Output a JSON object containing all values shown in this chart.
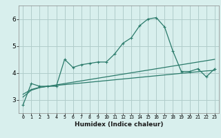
{
  "xlabel": "Humidex (Indice chaleur)",
  "x_values": [
    0,
    1,
    2,
    3,
    4,
    5,
    6,
    7,
    8,
    9,
    10,
    11,
    12,
    13,
    14,
    15,
    16,
    17,
    18,
    19,
    20,
    21,
    22,
    23
  ],
  "line1_y": [
    2.8,
    3.6,
    3.5,
    3.5,
    3.5,
    4.5,
    4.2,
    4.3,
    4.35,
    4.4,
    4.4,
    4.7,
    5.1,
    5.3,
    5.75,
    6.0,
    6.05,
    5.7,
    4.8,
    4.05,
    4.05,
    4.15,
    3.85,
    4.15
  ],
  "line2_y": [
    3.1,
    3.35,
    3.45,
    3.5,
    3.55,
    3.6,
    3.65,
    3.7,
    3.75,
    3.8,
    3.85,
    3.9,
    3.95,
    4.0,
    4.05,
    4.1,
    4.15,
    4.2,
    4.25,
    4.3,
    4.35,
    4.4,
    4.45,
    4.5
  ],
  "line3_y": [
    3.2,
    3.38,
    3.46,
    3.5,
    3.53,
    3.56,
    3.59,
    3.62,
    3.65,
    3.68,
    3.71,
    3.74,
    3.77,
    3.8,
    3.83,
    3.86,
    3.89,
    3.92,
    3.95,
    3.98,
    4.01,
    4.04,
    4.07,
    4.09
  ],
  "line_color": "#2a7a6a",
  "bg_color": "#d8efed",
  "grid_color": "#b0ccca",
  "ylim": [
    2.5,
    6.5
  ],
  "yticks": [
    3,
    4,
    5,
    6
  ],
  "xlim": [
    -0.5,
    23.5
  ],
  "xtick_labels": [
    "0",
    "1",
    "2",
    "3",
    "4",
    "5",
    "6",
    "7",
    "8",
    "9",
    "10",
    "11",
    "12",
    "13",
    "14",
    "15",
    "16",
    "17",
    "18",
    "19",
    "20",
    "21",
    "22",
    "23"
  ]
}
